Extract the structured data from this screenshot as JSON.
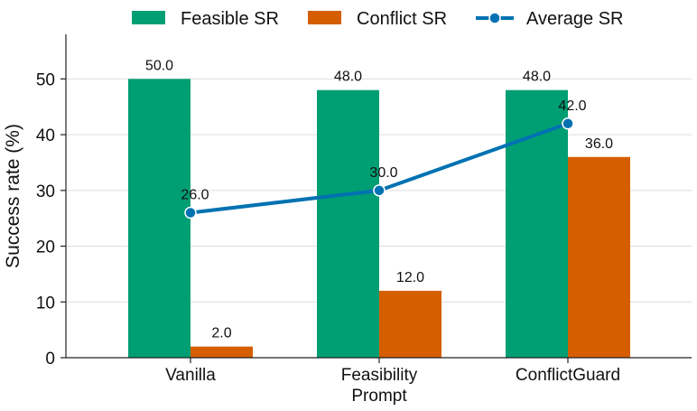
{
  "chart_data": {
    "type": "bar",
    "categories": [
      [
        "Vanilla"
      ],
      [
        "Feasibility",
        "Prompt"
      ],
      [
        "ConflictGuard"
      ]
    ],
    "series": [
      {
        "name": "Feasible SR",
        "kind": "bar",
        "color": "#009e73",
        "values": [
          50.0,
          48.0,
          48.0
        ]
      },
      {
        "name": "Conflict SR",
        "kind": "bar",
        "color": "#d55e00",
        "values": [
          2.0,
          12.0,
          36.0
        ]
      },
      {
        "name": "Average SR",
        "kind": "line",
        "color": "#0072b2",
        "values": [
          26.0,
          30.0,
          42.0
        ]
      }
    ],
    "data_labels": {
      "feasible": [
        "50.0",
        "48.0",
        "48.0"
      ],
      "conflict": [
        "2.0",
        "12.0",
        "36.0"
      ],
      "average": [
        "26.0",
        "30.0",
        "42.0"
      ]
    },
    "ylabel": "Success rate (%)",
    "ylim": [
      0,
      58
    ],
    "yticks": [
      0,
      10,
      20,
      30,
      40,
      50
    ],
    "grid": "horizontal",
    "legend": "top"
  }
}
